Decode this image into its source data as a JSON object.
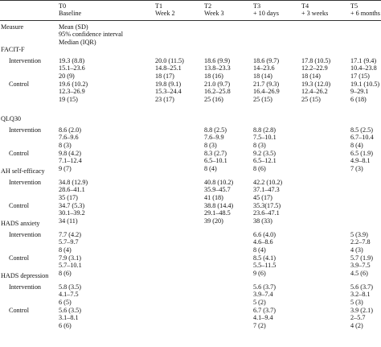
{
  "header": {
    "columns": [
      {
        "code": "T0",
        "label": "Baseline"
      },
      {
        "code": "T1",
        "label": "Week 2"
      },
      {
        "code": "T2",
        "label": "Week 3"
      },
      {
        "code": "T3",
        "label": "+ 10 days"
      },
      {
        "code": "T4",
        "label": "+ 3 weeks"
      },
      {
        "code": "T5",
        "label": "+ 6 months"
      }
    ],
    "measure_label": "Measure",
    "stats": [
      "Mean (SD)",
      "95% confidence interval",
      "Median (IQR)"
    ]
  },
  "sections": [
    {
      "name": "FACIT-F",
      "groups": [
        {
          "name": "Intervention",
          "values": [
            [
              "19.3 (8.8)",
              "15.1–23.6",
              "20 (9)"
            ],
            [
              "20.0 (11.5)",
              "14.8–25.1",
              "18 (17)"
            ],
            [
              "18.6 (9.9)",
              "13.8–23.3",
              "18 (16)"
            ],
            [
              "18.6 (9.7)",
              "14–23.6",
              "18 (14)"
            ],
            [
              "17.8 (10.5)",
              "12.2–22.9",
              "18 (14)"
            ],
            [
              "17.1 (9.4)",
              "10.4–23.8",
              "17 (15)"
            ]
          ]
        },
        {
          "name": "Control",
          "values": [
            [
              "19.6 (10.2)",
              "12.3–26.9",
              "19 (15)"
            ],
            [
              "19.8 (9.1)",
              "15.3–24.4",
              "23 (17)"
            ],
            [
              "21.0 (9.7)",
              "16.2–25.8",
              "25 (16)"
            ],
            [
              "21.7 (9.3)",
              "16.4–26.9",
              "25 (15)"
            ],
            [
              "19.3 (12.0)",
              "12.4–26.2",
              "25 (15)"
            ],
            [
              "19.1 (10.5)",
              "9–29.1",
              "6 (18)"
            ]
          ]
        }
      ]
    },
    {
      "name": "QLQ30",
      "groups": [
        {
          "name": "Intervention",
          "values": [
            [
              "8.6 (2.0)",
              "7.6–9.6",
              "8 (3)"
            ],
            [
              "",
              "",
              ""
            ],
            [
              "8.8 (2.5)",
              "7.6–9.9",
              "8 (3)"
            ],
            [
              "8.8 (2.8)",
              "7.5–10.1",
              "8 (3)"
            ],
            [
              "",
              "",
              ""
            ],
            [
              "8.5 (2.5)",
              "6.7–10.4",
              "8 (4)"
            ]
          ]
        },
        {
          "name": "Control",
          "values": [
            [
              "9.8 (4.2)",
              "7.1–12.4",
              "9 (7)"
            ],
            [
              "",
              "",
              ""
            ],
            [
              "8.3 (2.7)",
              "6.5–10.1",
              "8 (4)"
            ],
            [
              "9.2 (3.5)",
              "6.5–12.1",
              "8 (6)"
            ],
            [
              "",
              "",
              ""
            ],
            [
              "6.5 (1.9)",
              "4.9–8.1",
              "7 (3)"
            ]
          ]
        }
      ]
    },
    {
      "name": "AH self-efficacy",
      "groups": [
        {
          "name": "Intervention",
          "values": [
            [
              "34.8 (12.9)",
              "28.6–41.1",
              "35 (17)"
            ],
            [
              "",
              "",
              ""
            ],
            [
              "40.8 (10.2)",
              "35.9–45.7",
              "41 (18)"
            ],
            [
              "42.2 (10.2)",
              "37.1–47.3",
              "45 (17)"
            ],
            [
              "",
              "",
              ""
            ],
            [
              "",
              "",
              ""
            ]
          ]
        },
        {
          "name": "Control",
          "values": [
            [
              "34.7 (5.3)",
              "30.1–39.2",
              "34 (11)"
            ],
            [
              "",
              "",
              ""
            ],
            [
              "38.8 (14.4)",
              "29.1–48.5",
              "39 (20)"
            ],
            [
              "35.3(17.5)",
              "23.6–47.1",
              "38 (33)"
            ],
            [
              "",
              "",
              ""
            ],
            [
              "",
              "",
              ""
            ]
          ]
        }
      ]
    },
    {
      "name": "HADS anxiety",
      "groups": [
        {
          "name": "Intervention",
          "values": [
            [
              "7.7 (4.2)",
              "5.7–9.7",
              "8 (4)"
            ],
            [
              "",
              "",
              ""
            ],
            [
              "",
              "",
              ""
            ],
            [
              "6.6 (4.0)",
              "4.6–8.6",
              "8 (4)"
            ],
            [
              "",
              "",
              ""
            ],
            [
              "5 (3.9)",
              "2.2–7.8",
              "4 (3)"
            ]
          ]
        },
        {
          "name": "Control",
          "values": [
            [
              "7.9 (3.1)",
              "5.7–10.1",
              "8 (6)"
            ],
            [
              "",
              "",
              ""
            ],
            [
              "",
              "",
              ""
            ],
            [
              "8.5 (4.1)",
              "5.5–11.5",
              "9 (6)"
            ],
            [
              "",
              "",
              ""
            ],
            [
              "5.7 (1.9)",
              "3.9–7.5",
              "4.5 (6)"
            ]
          ]
        }
      ]
    },
    {
      "name": "HADS depression",
      "groups": [
        {
          "name": "Intervention",
          "values": [
            [
              "5.8 (3.5)",
              "4.1–7.5",
              "6 (5)"
            ],
            [
              "",
              "",
              ""
            ],
            [
              "",
              "",
              ""
            ],
            [
              "5.6 (3.7)",
              "3.9–7.4",
              "5 (2)"
            ],
            [
              "",
              "",
              ""
            ],
            [
              "5.6 (3.7)",
              "3.2–8.1",
              "5 (3)"
            ]
          ]
        },
        {
          "name": "Control",
          "values": [
            [
              "5.6 (3.5)",
              "3.1–8.1",
              "6 (6)"
            ],
            [
              "",
              "",
              ""
            ],
            [
              "",
              "",
              ""
            ],
            [
              "6.7 (3.7)",
              "4.1–9.4",
              "7 (2)"
            ],
            [
              "",
              "",
              ""
            ],
            [
              "3.9 (2.1)",
              "2–5.7",
              "4 (2)"
            ]
          ]
        }
      ]
    }
  ]
}
